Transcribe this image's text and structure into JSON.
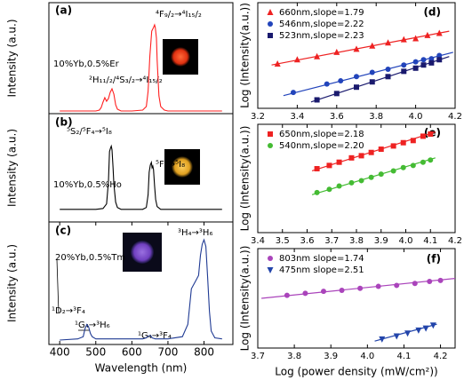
{
  "chart_data": [
    {
      "type": "line",
      "panel_label": "(a)",
      "ylabel": "Intensity (a.u.)",
      "xlim": [
        370,
        880
      ],
      "ylim": [
        0,
        1.25
      ],
      "annotations": [
        "⁴F₉/₂→⁴I₁₅/₂",
        "²H₁₁/₂/⁴S₃/₂→⁴I₁₅/₂",
        "10%Yb,0.5%Er"
      ],
      "series": [
        {
          "color": "#ff2020",
          "x": [
            400,
            450,
            500,
            510,
            515,
            520,
            525,
            530,
            535,
            540,
            545,
            550,
            555,
            560,
            570,
            600,
            630,
            640,
            645,
            650,
            655,
            660,
            663,
            665,
            668,
            670,
            675,
            680,
            690,
            700,
            750,
            800,
            850
          ],
          "values": [
            0.03,
            0.03,
            0.03,
            0.04,
            0.07,
            0.13,
            0.18,
            0.14,
            0.17,
            0.24,
            0.28,
            0.22,
            0.1,
            0.05,
            0.03,
            0.03,
            0.04,
            0.08,
            0.25,
            0.65,
            0.93,
            0.97,
            1.0,
            0.97,
            0.85,
            0.6,
            0.2,
            0.08,
            0.04,
            0.03,
            0.03,
            0.03,
            0.03
          ]
        }
      ]
    },
    {
      "type": "line",
      "panel_label": "(b)",
      "ylabel": "Intensity (a.u.)",
      "xlim": [
        370,
        880
      ],
      "ylim": [
        0,
        1.2
      ],
      "annotations": [
        "⁵S₂/⁵F₄→⁵I₈",
        "⁵F₅→⁵I₈",
        "10%Yb,0.5%Ho"
      ],
      "series": [
        {
          "color": "#000000",
          "x": [
            400,
            450,
            500,
            520,
            530,
            535,
            538,
            541,
            543,
            545,
            548,
            550,
            555,
            560,
            570,
            600,
            630,
            640,
            645,
            648,
            651,
            654,
            656,
            658,
            660,
            663,
            666,
            670,
            680,
            700,
            750,
            800,
            850
          ],
          "values": [
            0.14,
            0.14,
            0.14,
            0.15,
            0.2,
            0.45,
            0.78,
            0.82,
            0.84,
            0.8,
            0.6,
            0.42,
            0.22,
            0.16,
            0.14,
            0.14,
            0.14,
            0.16,
            0.3,
            0.55,
            0.63,
            0.66,
            0.6,
            0.62,
            0.58,
            0.4,
            0.25,
            0.17,
            0.14,
            0.14,
            0.14,
            0.14,
            0.14
          ]
        }
      ]
    },
    {
      "type": "line",
      "panel_label": "(c)",
      "ylabel": "Intensity (a.u.)",
      "xlabel": "Wavelength (nm)",
      "xlim": [
        370,
        880
      ],
      "ylim": [
        0,
        1.1
      ],
      "xticks": [
        400,
        500,
        600,
        700,
        800
      ],
      "annotations": [
        "³H₄→³H₆",
        "20%Yb,0.5%Tm",
        "¹D₂→³F₄",
        "¹G₄→³H₆",
        "¹G₄→³F₄"
      ],
      "series": [
        {
          "color": "#1f3a93",
          "x": [
            400,
            450,
            465,
            470,
            475,
            480,
            485,
            490,
            500,
            550,
            600,
            630,
            640,
            648,
            652,
            656,
            665,
            680,
            700,
            740,
            755,
            765,
            775,
            785,
            790,
            795,
            800,
            805,
            810,
            815,
            820,
            830,
            850
          ],
          "values": [
            0.04,
            0.05,
            0.07,
            0.14,
            0.18,
            0.16,
            0.1,
            0.07,
            0.05,
            0.05,
            0.05,
            0.05,
            0.06,
            0.08,
            0.08,
            0.06,
            0.05,
            0.05,
            0.05,
            0.07,
            0.18,
            0.5,
            0.56,
            0.62,
            0.8,
            0.9,
            0.94,
            0.88,
            0.6,
            0.3,
            0.12,
            0.06,
            0.05
          ]
        }
      ]
    },
    {
      "type": "scatter",
      "panel_label": "(d)",
      "ylabel": "Log (Intensity(a.u.))",
      "xlim": [
        3.2,
        4.2
      ],
      "ylim": [
        0,
        1
      ],
      "xticks": [
        3.2,
        3.4,
        3.6,
        3.8,
        {
          "value": 4,
          "label": "4.0"
        },
        4.2
      ],
      "legend": "upper left",
      "series": [
        {
          "name": "660nm,slope=1.79",
          "color": "#ee2222",
          "marker": "triangle",
          "x": [
            3.3,
            3.4,
            3.5,
            3.6,
            3.7,
            3.78,
            3.86,
            3.94,
            4.0,
            4.06,
            4.12
          ],
          "values": [
            0.42,
            0.46,
            0.49,
            0.53,
            0.56,
            0.59,
            0.62,
            0.65,
            0.66,
            0.69,
            0.71
          ],
          "fit": {
            "x": [
              3.27,
              4.17
            ],
            "values": [
              0.41,
              0.73
            ]
          }
        },
        {
          "name": "546nm,slope=2.22",
          "color": "#2244bb",
          "marker": "circle",
          "x": [
            3.38,
            3.55,
            3.62,
            3.7,
            3.78,
            3.86,
            3.94,
            4.0,
            4.04,
            4.08,
            4.12
          ],
          "values": [
            0.15,
            0.23,
            0.26,
            0.3,
            0.34,
            0.37,
            0.41,
            0.44,
            0.46,
            0.47,
            0.5
          ],
          "fit": {
            "x": [
              3.33,
              4.19
            ],
            "values": [
              0.12,
              0.53
            ]
          }
        },
        {
          "name": "523nm,slope=2.23",
          "color": "#1a1a6e",
          "marker": "square",
          "x": [
            3.5,
            3.6,
            3.7,
            3.78,
            3.86,
            3.94,
            4.0,
            4.04,
            4.08,
            4.12
          ],
          "values": [
            0.08,
            0.14,
            0.2,
            0.25,
            0.3,
            0.35,
            0.38,
            0.41,
            0.43,
            0.46
          ],
          "fit": {
            "x": [
              3.47,
              4.17
            ],
            "values": [
              0.06,
              0.49
            ]
          }
        }
      ]
    },
    {
      "type": "scatter",
      "panel_label": "(e)",
      "ylabel": "Log (Intensity(a.u.))",
      "xlim": [
        3.4,
        4.2
      ],
      "ylim": [
        0,
        1
      ],
      "xticks": [
        3.4,
        3.5,
        3.6,
        3.7,
        3.8,
        3.9,
        {
          "value": 4,
          "label": "4.0"
        },
        4.1,
        4.2
      ],
      "legend": "upper left",
      "series": [
        {
          "name": "650nm,slope=2.18",
          "color": "#ee2222",
          "marker": "square",
          "x": [
            3.64,
            3.69,
            3.73,
            3.78,
            3.82,
            3.86,
            3.9,
            3.95,
            3.99,
            4.03,
            4.07,
            4.1
          ],
          "values": [
            0.59,
            0.62,
            0.65,
            0.69,
            0.71,
            0.74,
            0.77,
            0.8,
            0.83,
            0.85,
            0.89,
            0.91
          ],
          "fit": {
            "x": [
              3.62,
              4.12
            ],
            "values": [
              0.57,
              0.93
            ]
          }
        },
        {
          "name": "540nm,slope=2.20",
          "color": "#44bb33",
          "marker": "circle",
          "x": [
            3.64,
            3.69,
            3.73,
            3.78,
            3.82,
            3.86,
            3.9,
            3.95,
            3.99,
            4.03,
            4.07,
            4.1
          ],
          "values": [
            0.37,
            0.4,
            0.43,
            0.46,
            0.48,
            0.51,
            0.54,
            0.57,
            0.6,
            0.62,
            0.65,
            0.67
          ],
          "fit": {
            "x": [
              3.62,
              4.12
            ],
            "values": [
              0.35,
              0.69
            ]
          }
        }
      ]
    },
    {
      "type": "scatter",
      "panel_label": "(f)",
      "ylabel": "Log (Intensity(a.u.))",
      "xlabel": "Log (power density (mW/cm²))",
      "xlim": [
        3.7,
        4.24
      ],
      "ylim": [
        0,
        1
      ],
      "xticks": [
        3.7,
        3.8,
        3.9,
        {
          "value": 4,
          "label": "4.0"
        },
        4.1,
        4.2
      ],
      "legend": "upper left",
      "series": [
        {
          "name": "803nm slope=1.74",
          "color": "#aa44bb",
          "marker": "circle",
          "x": [
            3.78,
            3.83,
            3.88,
            3.93,
            3.98,
            4.03,
            4.08,
            4.13,
            4.17,
            4.2
          ],
          "values": [
            0.53,
            0.55,
            0.57,
            0.58,
            0.6,
            0.62,
            0.63,
            0.65,
            0.67,
            0.68
          ],
          "fit": {
            "x": [
              3.71,
              4.24
            ],
            "values": [
              0.5,
              0.7
            ]
          }
        },
        {
          "name": "475nm slope=2.51",
          "color": "#2244aa",
          "marker": "inverted-triangle",
          "x": [
            4.04,
            4.08,
            4.11,
            4.14,
            4.16,
            4.18
          ],
          "values": [
            0.09,
            0.12,
            0.15,
            0.18,
            0.2,
            0.23
          ],
          "fit": {
            "x": [
              4.02,
              4.19
            ],
            "values": [
              0.07,
              0.24
            ]
          }
        }
      ]
    }
  ]
}
